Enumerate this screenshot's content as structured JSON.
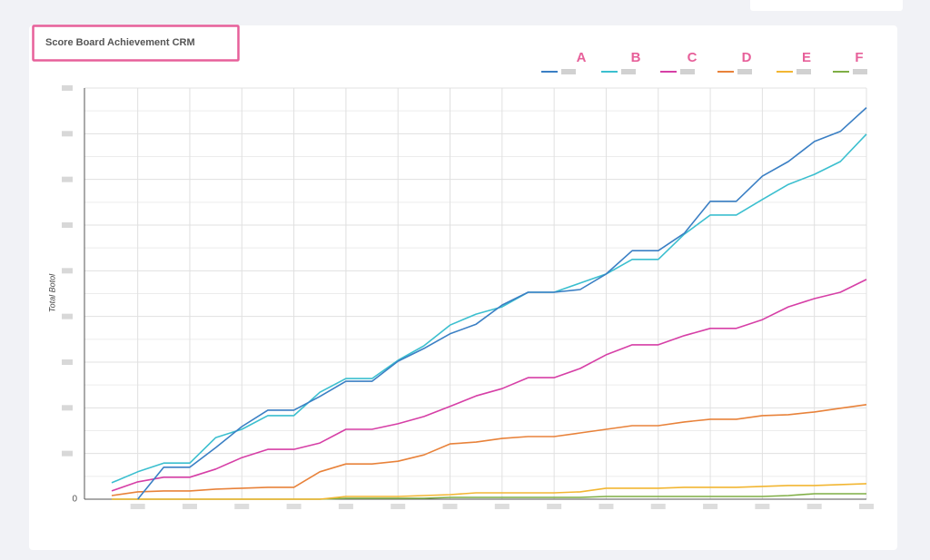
{
  "chart_data": {
    "type": "line",
    "title": "Score Board Achievement CRM",
    "y_label": "Total Botol",
    "categories": [
      null,
      null,
      null,
      null,
      null,
      null,
      null,
      null,
      null,
      null,
      null,
      null,
      null,
      null,
      null,
      null,
      null,
      null,
      null,
      null,
      null,
      null,
      null,
      null,
      null,
      null,
      null,
      null,
      null,
      null
    ],
    "series": [
      {
        "name": "A",
        "color": "#3a7fc4",
        "values": [
          null,
          0,
          7.0,
          7.0,
          11.3,
          15.9,
          19.5,
          19.5,
          22.5,
          25.8,
          25.8,
          30.2,
          33.0,
          36.2,
          38.3,
          42.5,
          45.3,
          45.3,
          45.9,
          49.3,
          54.4,
          54.4,
          58.2,
          65.2,
          65.2,
          70.7,
          73.9,
          78.3,
          80.5,
          85.7
        ]
      },
      {
        "name": "B",
        "color": "#3bbfcf",
        "values": [
          3.6,
          6.0,
          7.9,
          7.9,
          13.5,
          15.3,
          18.3,
          18.3,
          23.4,
          26.4,
          26.4,
          30.4,
          33.6,
          38.1,
          40.5,
          42.1,
          45.3,
          45.3,
          47.3,
          49.3,
          52.5,
          52.5,
          58.0,
          62.2,
          62.2,
          65.6,
          68.9,
          71.1,
          73.9,
          79.9
        ]
      },
      {
        "name": "C",
        "color": "#d63fa6",
        "values": [
          1.8,
          3.8,
          4.8,
          4.8,
          6.6,
          9.1,
          10.9,
          10.9,
          12.3,
          15.3,
          15.3,
          16.5,
          18.1,
          20.3,
          22.6,
          24.2,
          26.6,
          26.6,
          28.6,
          31.6,
          33.8,
          33.8,
          35.8,
          37.4,
          37.4,
          39.3,
          42.1,
          43.9,
          45.3,
          48.1
        ]
      },
      {
        "name": "D",
        "color": "#e8823a",
        "values": [
          0.8,
          1.6,
          1.8,
          1.8,
          2.2,
          2.4,
          2.6,
          2.6,
          6.0,
          7.7,
          7.7,
          8.3,
          9.7,
          12.1,
          12.5,
          13.3,
          13.7,
          13.7,
          14.5,
          15.3,
          16.1,
          16.1,
          16.9,
          17.5,
          17.5,
          18.3,
          18.5,
          19.1,
          19.9,
          20.7
        ]
      },
      {
        "name": "E",
        "color": "#f2b632",
        "values": [
          0,
          0,
          0,
          0,
          0,
          0,
          0,
          0,
          0,
          0.6,
          0.6,
          0.6,
          0.8,
          1.0,
          1.4,
          1.4,
          1.4,
          1.4,
          1.6,
          2.4,
          2.4,
          2.4,
          2.6,
          2.6,
          2.6,
          2.8,
          3.0,
          3.0,
          3.2,
          3.4
        ]
      },
      {
        "name": "F",
        "color": "#7fae45",
        "values": [
          0,
          0,
          0,
          0,
          0,
          0,
          0,
          0,
          0,
          0.2,
          0.2,
          0.2,
          0.2,
          0.4,
          0.4,
          0.4,
          0.4,
          0.4,
          0.4,
          0.6,
          0.6,
          0.6,
          0.6,
          0.6,
          0.6,
          0.6,
          0.8,
          1.2,
          1.2,
          1.2
        ]
      }
    ],
    "ylim": [
      0,
      90
    ],
    "yticks": [
      0,
      {
        "value": 10,
        "label": null
      },
      {
        "value": 20,
        "label": null
      },
      {
        "value": 30,
        "label": null
      },
      {
        "value": 40,
        "label": null
      },
      {
        "value": 50,
        "label": null
      },
      {
        "value": 60,
        "label": null
      },
      {
        "value": 70,
        "label": null
      },
      {
        "value": 80,
        "label": null
      },
      {
        "value": 90,
        "label": null
      }
    ],
    "minor_yticks": [
      5,
      15,
      25,
      35,
      45,
      55,
      65,
      75,
      85
    ],
    "grid": true,
    "legend": "top-right"
  }
}
